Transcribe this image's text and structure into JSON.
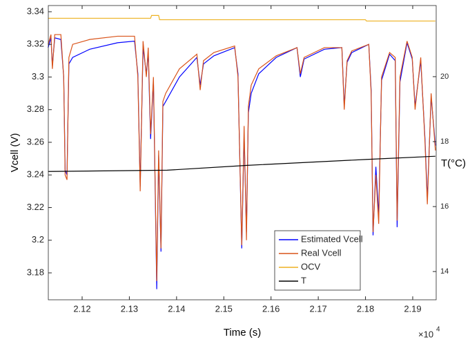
{
  "chart_data": {
    "type": "line",
    "xlabel": "Time (s)",
    "ylabel": "Vcell (V)",
    "y2label": "T(°C)",
    "x_multiplier": {
      "base": "×10",
      "exponent": "4"
    },
    "xlim": [
      2.11284,
      2.19497
    ],
    "xticks": [
      2.12,
      2.13,
      2.14,
      2.15,
      2.16,
      2.17,
      2.18,
      2.19
    ],
    "ylim": [
      3.1635,
      3.3438
    ],
    "yticks": [
      3.18,
      3.2,
      3.22,
      3.24,
      3.26,
      3.28,
      3.3,
      3.32,
      3.34
    ],
    "y2lim": [
      13.13,
      22.19
    ],
    "y2ticks": [
      14,
      16,
      18,
      20
    ],
    "grid": false,
    "legend": "south",
    "series": [
      {
        "name": "Estimated Vcell",
        "color": "#0000ff",
        "x": [
          2.1128,
          2.1134,
          2.1137,
          2.1142,
          2.1155,
          2.1161,
          2.1164,
          2.1168,
          2.1172,
          2.118,
          2.1216,
          2.1275,
          2.1311,
          2.1318,
          2.1323,
          2.1329,
          2.1336,
          2.134,
          2.1345,
          2.1351,
          2.1358,
          2.1362,
          2.1367,
          2.1371,
          2.1377,
          2.1406,
          2.1443,
          2.145,
          2.1457,
          2.1479,
          2.1523,
          2.153,
          2.1538,
          2.1543,
          2.1548,
          2.1552,
          2.1558,
          2.1574,
          2.1611,
          2.1655,
          2.1662,
          2.167,
          2.1713,
          2.175,
          2.1755,
          2.1761,
          2.1771,
          2.1807,
          2.1812,
          2.1816,
          2.1822,
          2.1828,
          2.1834,
          2.1851,
          2.1863,
          2.1867,
          2.1873,
          2.1888,
          2.1899,
          2.1905,
          2.1917,
          2.1926,
          2.1931,
          2.1939,
          2.1948
        ],
        "values": [
          3.318,
          3.324,
          3.307,
          3.324,
          3.323,
          3.3,
          3.243,
          3.24,
          3.308,
          3.312,
          3.317,
          3.321,
          3.322,
          3.302,
          3.233,
          3.318,
          3.302,
          3.315,
          3.262,
          3.298,
          3.17,
          3.252,
          3.193,
          3.282,
          3.285,
          3.3,
          3.312,
          3.295,
          3.308,
          3.313,
          3.318,
          3.302,
          3.195,
          3.265,
          3.205,
          3.278,
          3.29,
          3.302,
          3.312,
          3.318,
          3.3,
          3.311,
          3.317,
          3.318,
          3.282,
          3.309,
          3.315,
          3.32,
          3.292,
          3.203,
          3.245,
          3.215,
          3.298,
          3.314,
          3.31,
          3.208,
          3.297,
          3.321,
          3.311,
          3.282,
          3.31,
          3.262,
          3.225,
          3.288,
          3.258
        ]
      },
      {
        "name": "Real Vcell",
        "color": "#d95319",
        "x": [
          2.1128,
          2.1134,
          2.1137,
          2.1142,
          2.1155,
          2.1161,
          2.1164,
          2.1168,
          2.1172,
          2.118,
          2.1216,
          2.1275,
          2.1311,
          2.1318,
          2.1323,
          2.1329,
          2.1336,
          2.134,
          2.1345,
          2.1351,
          2.1358,
          2.1362,
          2.1367,
          2.1371,
          2.1377,
          2.1406,
          2.1443,
          2.145,
          2.1457,
          2.1479,
          2.1523,
          2.153,
          2.1538,
          2.1543,
          2.1548,
          2.1552,
          2.1558,
          2.1574,
          2.1611,
          2.1655,
          2.1662,
          2.167,
          2.1713,
          2.175,
          2.1755,
          2.1761,
          2.1771,
          2.1807,
          2.1812,
          2.1816,
          2.1822,
          2.1828,
          2.1834,
          2.1851,
          2.1863,
          2.1867,
          2.1873,
          2.1888,
          2.1899,
          2.1905,
          2.1917,
          2.1926,
          2.1931,
          2.1939,
          2.1948
        ],
        "values": [
          3.32,
          3.326,
          3.305,
          3.326,
          3.326,
          3.3,
          3.24,
          3.237,
          3.312,
          3.32,
          3.323,
          3.325,
          3.325,
          3.3,
          3.23,
          3.322,
          3.3,
          3.318,
          3.265,
          3.3,
          3.175,
          3.255,
          3.195,
          3.285,
          3.29,
          3.305,
          3.314,
          3.292,
          3.31,
          3.315,
          3.319,
          3.3,
          3.197,
          3.27,
          3.2,
          3.282,
          3.295,
          3.305,
          3.313,
          3.318,
          3.302,
          3.312,
          3.318,
          3.318,
          3.28,
          3.31,
          3.316,
          3.32,
          3.29,
          3.205,
          3.24,
          3.21,
          3.3,
          3.315,
          3.312,
          3.212,
          3.3,
          3.322,
          3.312,
          3.28,
          3.312,
          3.26,
          3.222,
          3.29,
          3.255
        ]
      },
      {
        "name": "OCV",
        "color": "#edb120",
        "x": [
          2.1128,
          2.1345,
          2.1347,
          2.1362,
          2.1364,
          2.18,
          2.1802,
          2.1948
        ],
        "values": [
          3.336,
          3.336,
          3.3377,
          3.3377,
          3.3351,
          3.3351,
          3.3343,
          3.3343
        ]
      },
      {
        "name": "T",
        "color": "#000000",
        "axis": "y2",
        "x": [
          2.1128,
          2.138,
          2.155,
          2.18,
          2.1948
        ],
        "values": [
          17.08,
          17.12,
          17.27,
          17.45,
          17.55
        ]
      }
    ]
  }
}
